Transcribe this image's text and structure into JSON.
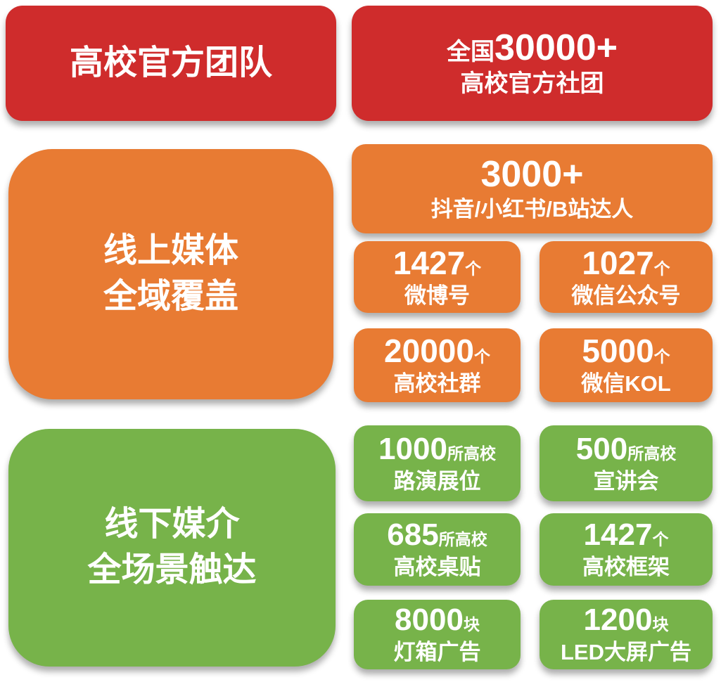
{
  "palette": {
    "red": "#cf2c2c",
    "orange": "#e87b33",
    "green": "#77b34a",
    "text": "#ffffff",
    "background": "#ffffff"
  },
  "red_section": {
    "title": "高校官方团队",
    "card": {
      "prefix": "全国",
      "number": "30000+",
      "label": "高校官方社团"
    }
  },
  "orange_section": {
    "title_line1": "线上媒体",
    "title_line2": "全域覆盖",
    "wide_card": {
      "number": "3000+",
      "label": "抖音/小红书/B站达人"
    },
    "cards": [
      {
        "number": "1427",
        "unit": "个",
        "label": "微博号"
      },
      {
        "number": "1027",
        "unit": "个",
        "label": "微信公众号"
      },
      {
        "number": "20000",
        "unit": "个",
        "label": "高校社群"
      },
      {
        "number": "5000",
        "unit": "个",
        "label": "微信KOL"
      }
    ]
  },
  "green_section": {
    "title_line1": "线下媒介",
    "title_line2": "全场景触达",
    "cards": [
      {
        "number": "1000",
        "unit": "所高校",
        "label": "路演展位"
      },
      {
        "number": "500",
        "unit": "所高校",
        "label": "宣讲会"
      },
      {
        "number": "685",
        "unit": "所高校",
        "label": "高校桌贴"
      },
      {
        "number": "1427",
        "unit": "个",
        "label": "高校框架"
      },
      {
        "number": "8000",
        "unit": "块",
        "label": "灯箱广告"
      },
      {
        "number": "1200",
        "unit": "块",
        "label": "LED大屏广告"
      }
    ]
  }
}
